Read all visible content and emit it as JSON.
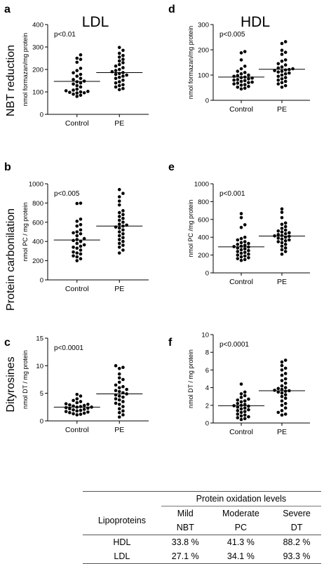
{
  "column_titles": {
    "left": "LDL",
    "right": "HDL"
  },
  "row_titles": [
    "NBT reduction",
    "Protein carbonilation",
    "Dityrosines"
  ],
  "chart_data": [
    {
      "panel": "a",
      "type": "scatter",
      "ylabel": "nmol formazan/mg protein",
      "ylim": [
        0,
        400
      ],
      "yticks": [
        0,
        100,
        200,
        300,
        400
      ],
      "categories": [
        "Control",
        "PE"
      ],
      "pvalue": "p<0.01",
      "medians": [
        147,
        186
      ],
      "series": [
        {
          "values": [
            265,
            250,
            245,
            232,
            205,
            195,
            185,
            178,
            170,
            160,
            155,
            148,
            145,
            140,
            135,
            128,
            122,
            112,
            108,
            105,
            102,
            100,
            98,
            96,
            95,
            90,
            85,
            80
          ]
        },
        {
          "values": [
            298,
            285,
            272,
            262,
            255,
            245,
            238,
            230,
            222,
            215,
            208,
            200,
            195,
            190,
            186,
            182,
            178,
            175,
            170,
            165,
            160,
            152,
            145,
            140,
            132,
            128,
            122,
            115,
            110
          ]
        }
      ]
    },
    {
      "panel": "d",
      "type": "scatter",
      "ylabel": "nmol formazan/mg protein",
      "ylim": [
        0,
        300
      ],
      "yticks": [
        0,
        100,
        200,
        300
      ],
      "categories": [
        "Control",
        "PE"
      ],
      "pvalue": "p<0.005",
      "medians": [
        92,
        123
      ],
      "series": [
        {
          "values": [
            193,
            188,
            160,
            135,
            125,
            115,
            110,
            105,
            100,
            98,
            95,
            92,
            90,
            88,
            85,
            82,
            80,
            78,
            75,
            72,
            70,
            68,
            65,
            62,
            60,
            55,
            52,
            48,
            45
          ]
        },
        {
          "values": [
            232,
            225,
            198,
            190,
            182,
            160,
            155,
            145,
            140,
            132,
            128,
            125,
            122,
            120,
            118,
            115,
            112,
            108,
            105,
            100,
            95,
            90,
            85,
            80,
            75,
            70,
            65,
            58,
            52
          ]
        }
      ]
    },
    {
      "panel": "b",
      "type": "scatter",
      "ylabel": "nmol PC / mg protein",
      "ylim": [
        0,
        1000
      ],
      "yticks": [
        0,
        200,
        400,
        600,
        800,
        1000
      ],
      "categories": [
        "Control",
        "PE"
      ],
      "pvalue": "p<0.005",
      "medians": [
        415,
        560
      ],
      "series": [
        {
          "values": [
            798,
            795,
            632,
            610,
            575,
            560,
            520,
            500,
            490,
            480,
            460,
            430,
            420,
            410,
            400,
            380,
            365,
            350,
            340,
            330,
            310,
            290,
            280,
            270,
            250,
            240,
            220,
            200
          ]
        },
        {
          "values": [
            940,
            900,
            865,
            820,
            780,
            720,
            700,
            680,
            660,
            640,
            620,
            600,
            580,
            570,
            560,
            550,
            540,
            520,
            500,
            480,
            460,
            440,
            420,
            400,
            380,
            360,
            340,
            310,
            280
          ]
        }
      ]
    },
    {
      "panel": "e",
      "type": "scatter",
      "ylabel": "nmol PC /mg protein",
      "ylim": [
        0,
        1000
      ],
      "yticks": [
        0,
        200,
        400,
        600,
        800,
        1000
      ],
      "categories": [
        "Control",
        "PE"
      ],
      "pvalue": "p<0.001",
      "medians": [
        292,
        413
      ],
      "series": [
        {
          "values": [
            665,
            620,
            540,
            510,
            400,
            385,
            370,
            350,
            340,
            330,
            320,
            310,
            300,
            295,
            290,
            280,
            270,
            260,
            250,
            240,
            230,
            220,
            210,
            200,
            190,
            180,
            170,
            160,
            150,
            140
          ]
        },
        {
          "values": [
            718,
            680,
            620,
            560,
            545,
            520,
            500,
            480,
            470,
            460,
            450,
            440,
            430,
            420,
            415,
            410,
            400,
            390,
            380,
            370,
            360,
            350,
            340,
            320,
            300,
            280,
            260,
            240,
            210
          ]
        }
      ]
    },
    {
      "panel": "c",
      "type": "scatter",
      "ylabel": "nmol DT / mg protein",
      "ylim": [
        0,
        15
      ],
      "yticks": [
        0,
        5,
        10,
        15
      ],
      "categories": [
        "Control",
        "PE"
      ],
      "pvalue": "p<0.0001",
      "medians": [
        2.5,
        4.9
      ],
      "series": [
        {
          "values": [
            4.8,
            4.5,
            4.0,
            3.7,
            3.5,
            3.3,
            3.1,
            3.0,
            2.9,
            2.8,
            2.7,
            2.6,
            2.5,
            2.5,
            2.4,
            2.3,
            2.2,
            2.1,
            2.0,
            1.9,
            1.8,
            1.7,
            1.6,
            1.5,
            1.4,
            1.3,
            1.2,
            1.1
          ]
        },
        {
          "values": [
            10.0,
            9.7,
            9.5,
            8.5,
            7.8,
            7.5,
            7.0,
            6.5,
            6.2,
            6.0,
            5.7,
            5.5,
            5.3,
            5.1,
            4.9,
            4.7,
            4.5,
            4.3,
            4.0,
            3.8,
            3.5,
            3.2,
            3.0,
            2.6,
            2.2,
            1.8,
            1.5,
            1.1,
            0.7
          ]
        }
      ]
    },
    {
      "panel": "f",
      "type": "scatter",
      "ylabel": "nmol DT / mg protein",
      "ylim": [
        0,
        10
      ],
      "yticks": [
        0,
        2,
        4,
        6,
        8,
        10
      ],
      "categories": [
        "Control",
        "PE"
      ],
      "pvalue": "p<0.0001",
      "medians": [
        1.95,
        3.65
      ],
      "series": [
        {
          "values": [
            4.4,
            3.5,
            3.3,
            3.1,
            2.9,
            2.7,
            2.6,
            2.5,
            2.4,
            2.2,
            2.1,
            2.0,
            1.95,
            1.9,
            1.8,
            1.7,
            1.6,
            1.5,
            1.4,
            1.3,
            1.2,
            1.0,
            0.9,
            0.8,
            0.7,
            0.6,
            0.5,
            0.4
          ]
        },
        {
          "values": [
            7.1,
            6.9,
            6.5,
            6.2,
            6.0,
            5.6,
            5.4,
            5.0,
            4.8,
            4.5,
            4.2,
            4.0,
            3.9,
            3.8,
            3.7,
            3.65,
            3.6,
            3.5,
            3.4,
            3.2,
            3.0,
            2.8,
            2.5,
            2.2,
            2.0,
            1.7,
            1.4,
            1.2,
            1.0,
            0.9
          ]
        }
      ]
    }
  ],
  "table": {
    "caption": "Protein oxidation levels",
    "row_header": "Lipoproteins",
    "columns": [
      {
        "level": "Mild",
        "marker": "NBT"
      },
      {
        "level": "Moderate",
        "marker": "PC"
      },
      {
        "level": "Severe",
        "marker": "DT"
      }
    ],
    "rows": [
      {
        "label": "HDL",
        "values": [
          "33.8 %",
          "41.3 %",
          "88.2 %"
        ]
      },
      {
        "label": "LDL",
        "values": [
          "27.1 %",
          "34.1 %",
          "93.3 %"
        ]
      }
    ]
  }
}
